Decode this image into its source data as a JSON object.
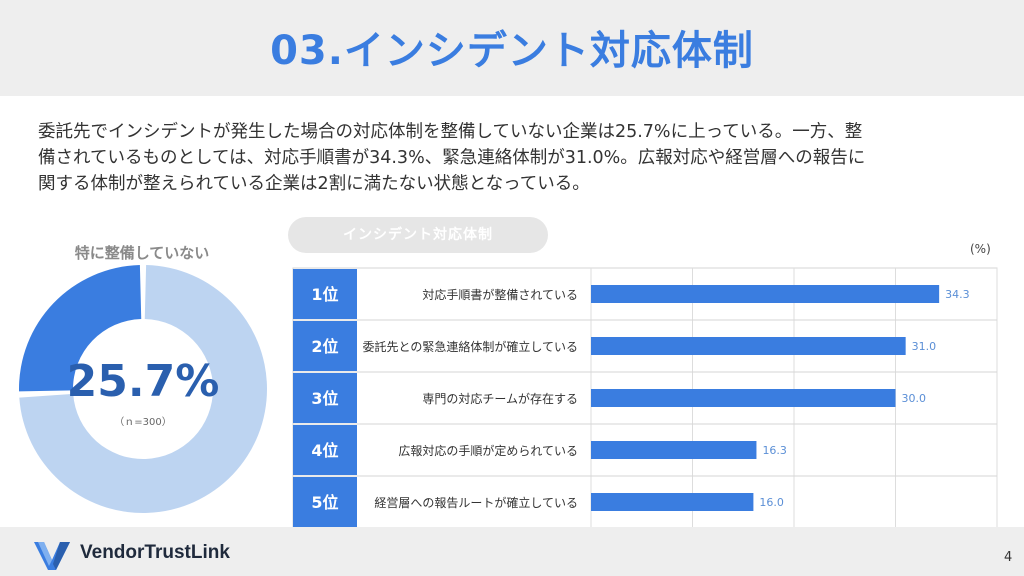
{
  "header": {
    "title": "03.インシデント対応体制"
  },
  "summary": {
    "line1": "委託先でインシデントが発生した場合の対応体制を整備していない企業は25.7%に上っている。一方、整",
    "line2": "備されているものとしては、対応手順書が34.3%、緊急連絡体制が31.0%。広報対応や経営層への報告に",
    "line3": "関する体制が整えられている企業は2割に満たない状態となっている。"
  },
  "donut": {
    "label": "特に整備していない",
    "value_text": "25.7%",
    "share": 0.257,
    "note": "（ｎ=300）",
    "colors": {
      "highlight": "#3a7de0",
      "rest": "#bdd4f1"
    }
  },
  "chart_data": {
    "type": "bar",
    "title": "インシデント対応体制",
    "unit": "(%)",
    "ranks": [
      "1位",
      "2位",
      "3位",
      "4位",
      "5位"
    ],
    "categories": [
      "対応手順書が整備されている",
      "委託先との緊急連絡体制が確立している",
      "専門の対応チームが存在する",
      "広報対応の手順が定められている",
      "経営層への報告ルートが確立している"
    ],
    "values": [
      34.3,
      31.0,
      30.0,
      16.3,
      16.0
    ],
    "value_labels": [
      "34.3",
      "31.0",
      "30.0",
      "16.3",
      "16.0"
    ],
    "xlim": [
      0,
      40
    ],
    "colors": {
      "bar": "#3a7de0",
      "rank_bg": "#3a7de0",
      "value_text": "#5b8fd6"
    }
  },
  "footer": {
    "brand": "VendorTrustLink",
    "page": "4"
  }
}
